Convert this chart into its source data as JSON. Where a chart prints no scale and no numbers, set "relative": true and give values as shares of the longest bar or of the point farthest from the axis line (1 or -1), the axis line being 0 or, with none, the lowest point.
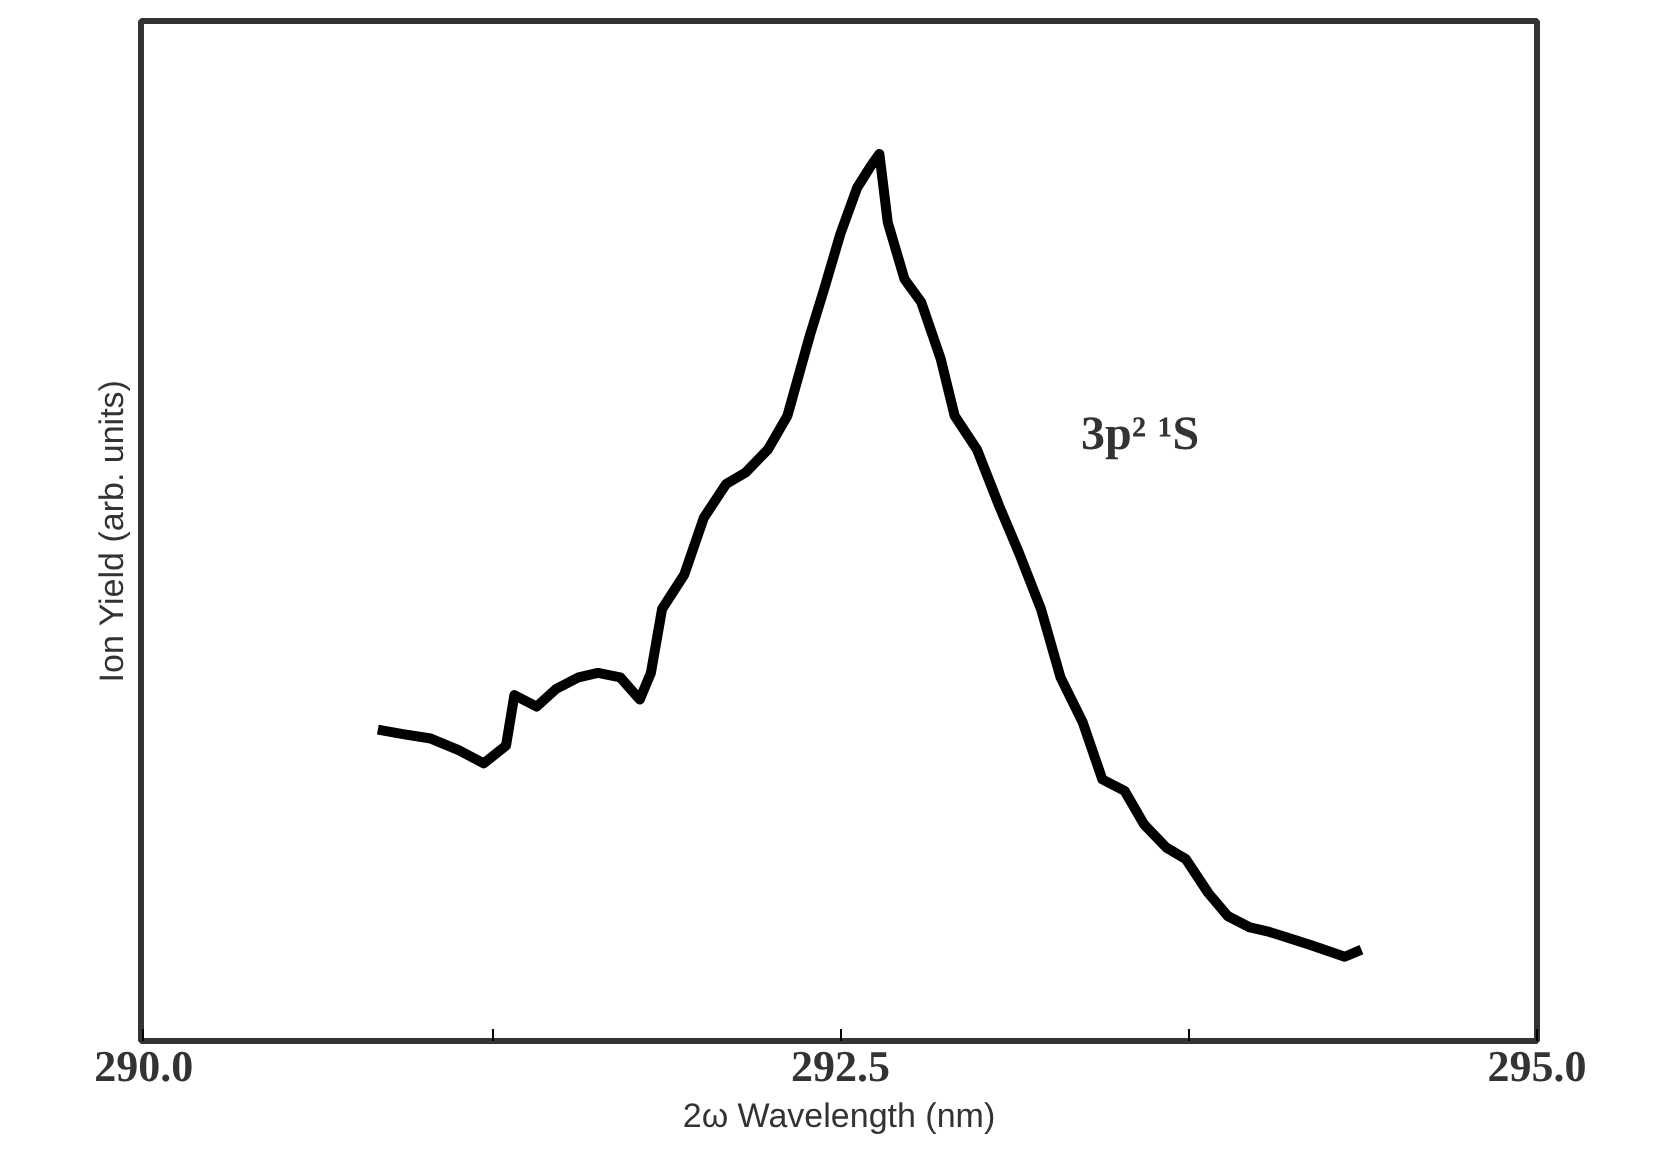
{
  "chart_data": {
    "type": "line",
    "relative": true,
    "tick_labels": "x",
    "xlabel": "2ω Wavelength (nm)",
    "ylabel": "Ion Yield (arb. units)",
    "annotations": [
      "3p² ¹S"
    ],
    "xlim": [
      289.99,
      295.0
    ],
    "xticks": [
      {
        "value": 290.0,
        "label": "290.0"
      },
      {
        "value": 291.25,
        "label": null
      },
      {
        "value": 292.5,
        "label": "292.5"
      },
      {
        "value": 293.75,
        "label": null
      },
      {
        "value": 295.0,
        "label": "295.0"
      }
    ],
    "grid": false,
    "series": [
      {
        "color": "#000000",
        "x": [
          290.84,
          290.93,
          291.03,
          291.13,
          291.22,
          291.3,
          291.33,
          291.41,
          291.48,
          291.56,
          291.63,
          291.71,
          291.78,
          291.82,
          291.86,
          291.94,
          292.01,
          292.09,
          292.16,
          292.24,
          292.31,
          292.39,
          292.44,
          292.5,
          292.56,
          292.61,
          292.64,
          292.67,
          292.73,
          292.79,
          292.86,
          292.91,
          292.99,
          293.07,
          293.14,
          293.22,
          293.29,
          293.37,
          293.44,
          293.52,
          293.59,
          293.67,
          293.74,
          293.82,
          293.89,
          293.97,
          294.04,
          294.12,
          294.19,
          294.31,
          294.37
        ],
        "values": [
          0.351,
          0.346,
          0.341,
          0.328,
          0.313,
          0.333,
          0.39,
          0.377,
          0.397,
          0.41,
          0.415,
          0.41,
          0.385,
          0.415,
          0.487,
          0.526,
          0.59,
          0.628,
          0.641,
          0.667,
          0.705,
          0.795,
          0.846,
          0.91,
          0.962,
          0.987,
          1.0,
          0.923,
          0.859,
          0.833,
          0.769,
          0.705,
          0.667,
          0.603,
          0.551,
          0.487,
          0.41,
          0.359,
          0.295,
          0.282,
          0.244,
          0.218,
          0.205,
          0.167,
          0.141,
          0.128,
          0.123,
          0.115,
          0.108,
          0.095,
          0.103
        ]
      }
    ]
  }
}
